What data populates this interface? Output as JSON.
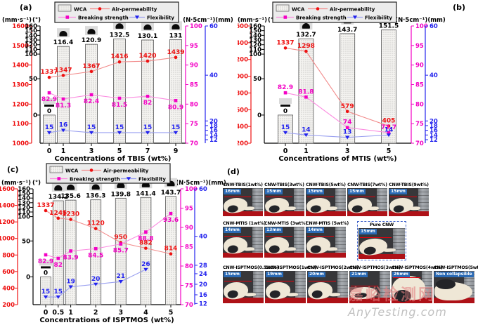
{
  "panels": {
    "a": {
      "label": "(a)"
    },
    "b": {
      "label": "(b)"
    },
    "c": {
      "label": "(c)"
    },
    "d": {
      "label": "(d)"
    }
  },
  "legend": {
    "wca": "WCA",
    "air": "Air-permeability",
    "breaking": "Breaking strength",
    "flex": "Flexibility"
  },
  "axis_headers": {
    "left_red": "(mm·s⁻¹)",
    "left_deg": "(°)",
    "right": "(N·5cm⁻¹)(mm)"
  },
  "colors": {
    "air": "#ee1111",
    "air_line": "#f28b8b",
    "breaking": "#f302c5",
    "breaking_line": "#fb8ce0",
    "flex": "#2323ee",
    "flex_line": "#9aa0f0",
    "black": "#000000",
    "bar_fill": "#f4f3f0",
    "bar_dot": "#9a9a9a",
    "bar_stroke": "#555555",
    "legend_bg": "#ececec",
    "badge_bg": "#2a6ab5",
    "floor_red": "#ae1117",
    "marker_line_red": "#e8000b"
  },
  "chart_data": [
    {
      "id": "a",
      "type": "bar+line",
      "xlabel": "Concentrations of TBIS (wt%)",
      "x": [
        0,
        1,
        3,
        5,
        7,
        9
      ],
      "x_tick_labels": [
        "0",
        "1",
        "3",
        "5",
        "7",
        "9"
      ],
      "series": [
        {
          "name": "WCA",
          "type": "bar",
          "axis": "deg",
          "values": [
            0,
            116.4,
            120.9,
            132.5,
            130.1,
            131
          ]
        },
        {
          "name": "Air-permeability",
          "type": "line",
          "axis": "red",
          "label_side": "above",
          "values": [
            1337,
            1347,
            1367,
            1416,
            1420,
            1439
          ]
        },
        {
          "name": "Breaking strength",
          "type": "line",
          "axis": "mag",
          "label_side": "below",
          "values": [
            82.9,
            81.3,
            82.4,
            81.5,
            82,
            80.9
          ]
        },
        {
          "name": "Flexibility",
          "type": "line",
          "axis": "blue",
          "label_side": "above",
          "values": [
            15,
            16,
            15,
            15,
            15,
            15
          ]
        }
      ],
      "axes": {
        "red": {
          "ticks": [
            1600,
            1500,
            1400,
            1300,
            1200,
            1100,
            1000
          ],
          "scale": [
            [
              1000,
              1
            ],
            [
              1600,
              0
            ]
          ]
        },
        "deg": {
          "ticks": [
            160,
            150,
            140,
            130,
            120,
            110,
            100,
            50,
            0
          ],
          "scale": [
            [
              0,
              0.76
            ],
            [
              50,
              0.45
            ],
            [
              100,
              0.24
            ],
            [
              160,
              0
            ]
          ]
        },
        "mag": {
          "ticks": [
            100,
            95,
            90,
            85,
            80,
            75,
            70
          ],
          "scale": [
            [
              70,
              1
            ],
            [
              100,
              0
            ]
          ]
        },
        "blue": {
          "ticks": [
            60,
            40,
            20,
            18,
            16,
            14,
            12
          ],
          "scale": [
            [
              12,
              0.97
            ],
            [
              14,
              0.93
            ],
            [
              16,
              0.89
            ],
            [
              18,
              0.85
            ],
            [
              20,
              0.81
            ],
            [
              40,
              0.42
            ],
            [
              60,
              0
            ]
          ]
        }
      }
    },
    {
      "id": "b",
      "type": "bar+line",
      "xlabel": "Concentrations of MTIS (wt%)",
      "x": [
        0,
        1,
        3,
        5
      ],
      "x_tick_labels": [
        "0",
        "1",
        "3",
        "5"
      ],
      "series": [
        {
          "name": "WCA",
          "type": "bar",
          "axis": "deg",
          "values": [
            0,
            132.7,
            143.7,
            151.5
          ]
        },
        {
          "name": "Air-permeability",
          "type": "line",
          "axis": "red",
          "label_side": "above",
          "values": [
            1337,
            1298,
            579,
            405
          ]
        },
        {
          "name": "Breaking strength",
          "type": "line",
          "axis": "mag",
          "label_side": "above",
          "values": [
            82.9,
            81.8,
            74,
            72.7
          ]
        },
        {
          "name": "Flexibility",
          "type": "line",
          "axis": "blue",
          "label_side": "above",
          "values": [
            15,
            14,
            13,
            14
          ]
        }
      ],
      "axes": {
        "red": {
          "ticks": [
            1600,
            1400,
            1200,
            1000,
            800,
            600,
            400,
            200
          ],
          "scale": [
            [
              200,
              1
            ],
            [
              1600,
              0
            ]
          ]
        },
        "deg": {
          "ticks": [
            160,
            150,
            140,
            130,
            120,
            110,
            100,
            50,
            0
          ],
          "scale": [
            [
              0,
              0.76
            ],
            [
              50,
              0.45
            ],
            [
              100,
              0.24
            ],
            [
              160,
              0
            ]
          ]
        },
        "mag": {
          "ticks": [
            100,
            95,
            90,
            85,
            80,
            75,
            70
          ],
          "scale": [
            [
              70,
              1
            ],
            [
              100,
              0
            ]
          ]
        },
        "blue": {
          "ticks": [
            60,
            40,
            20,
            18,
            16,
            14,
            12
          ],
          "scale": [
            [
              12,
              0.97
            ],
            [
              14,
              0.93
            ],
            [
              16,
              0.89
            ],
            [
              18,
              0.85
            ],
            [
              20,
              0.81
            ],
            [
              40,
              0.42
            ],
            [
              60,
              0
            ]
          ]
        }
      }
    },
    {
      "id": "c",
      "type": "bar+line",
      "xlabel": "Concentrations of ISPTMOS (wt%)",
      "x": [
        0,
        0.5,
        1,
        2,
        3,
        4,
        5
      ],
      "x_tick_labels": [
        "0",
        "0.5",
        "1",
        "2",
        "3",
        "4",
        "5"
      ],
      "series": [
        {
          "name": "WCA",
          "type": "bar",
          "axis": "deg",
          "values": [
            0,
            134.2,
            135.6,
            136.3,
            139.8,
            141.4,
            143.7
          ]
        },
        {
          "name": "Air-permeability",
          "type": "line",
          "axis": "red",
          "label_side": "above",
          "values": [
            1337,
            1245,
            1230,
            1120,
            950,
            882,
            814
          ]
        },
        {
          "name": "Breaking strength",
          "type": "line",
          "axis": "mag",
          "label_side": "below",
          "values": [
            82.9,
            82,
            83.9,
            84.5,
            85.7,
            88.8,
            93.6
          ]
        },
        {
          "name": "Flexibility",
          "type": "line",
          "axis": "blue",
          "label_side": "above",
          "values": [
            15,
            15,
            19,
            20,
            21,
            26,
            null
          ]
        }
      ],
      "axes": {
        "red": {
          "ticks": [
            1600,
            1400,
            1200,
            1000,
            800,
            600,
            400,
            200
          ],
          "scale": [
            [
              200,
              1
            ],
            [
              1600,
              0
            ]
          ]
        },
        "deg": {
          "ticks": [
            160,
            150,
            140,
            130,
            120,
            110,
            100,
            50,
            0
          ],
          "scale": [
            [
              0,
              0.76
            ],
            [
              50,
              0.45
            ],
            [
              100,
              0.24
            ],
            [
              160,
              0
            ]
          ]
        },
        "mag": {
          "ticks": [
            100,
            95,
            90,
            85,
            80,
            75,
            70
          ],
          "scale": [
            [
              70,
              1
            ],
            [
              100,
              0
            ]
          ]
        },
        "blue": {
          "ticks": [
            60,
            40,
            28,
            24,
            20,
            16,
            12
          ],
          "scale": [
            [
              12,
              0.99
            ],
            [
              16,
              0.915
            ],
            [
              20,
              0.824
            ],
            [
              24,
              0.733
            ],
            [
              28,
              0.66
            ],
            [
              40,
              0.41
            ],
            [
              60,
              0
            ]
          ]
        }
      }
    }
  ],
  "panel_d": {
    "rows": [
      {
        "cards": [
          {
            "title": "CNW-TBIS(1wt%)",
            "badge": "16mm",
            "shape": "loop"
          },
          {
            "title": "CNW-TBIS(3wt%)",
            "badge": "15mm",
            "shape": "loop"
          },
          {
            "title": "CNW-TBIS(5wt%)",
            "badge": "15mm",
            "shape": "loop"
          },
          {
            "title": "CNW-TBIS(7wt%)",
            "badge": "15mm",
            "shape": "loop"
          },
          {
            "title": "CNW-TBIS(9wt%)",
            "badge": "15mm",
            "shape": "loop"
          }
        ]
      },
      {
        "cards": [
          {
            "title": "CNW-MTIS (1wt%)",
            "badge": "14mm",
            "shape": "loop"
          },
          {
            "title": "CNW-MTIS (3wt%)",
            "badge": "13mm",
            "shape": "loop"
          },
          {
            "title": "CNW-MTIS (5wt%)",
            "badge": "14mm",
            "shape": "loop"
          },
          {
            "title": "Pure CNW",
            "badge": "15mm",
            "shape": "loop",
            "dashed": true
          }
        ]
      },
      {
        "cards": [
          {
            "title": "CNW-ISPTMOS(0.5wt%)",
            "badge": "15mm",
            "shape": "loop"
          },
          {
            "title": "CNW-ISPTMOS(1wt%)",
            "badge": "19mm",
            "shape": "loop"
          },
          {
            "title": "CNW-ISPTMOS(2wt%)",
            "badge": "20mm",
            "shape": "loop"
          },
          {
            "title": "CNW-ISPTMOS(3wt%)",
            "badge": "21mm",
            "shape": "flat"
          },
          {
            "title": "CNW-ISPTMOS(4wt%)",
            "badge": "26mm",
            "shape": "arch"
          },
          {
            "title": "CNW-ISPTMOS(5wt%)",
            "badge": "Non collapsible",
            "shape": "fold"
          }
        ]
      }
    ]
  },
  "watermark": {
    "cn": "嘉峪检测网",
    "en": "AnyTesting.com"
  }
}
